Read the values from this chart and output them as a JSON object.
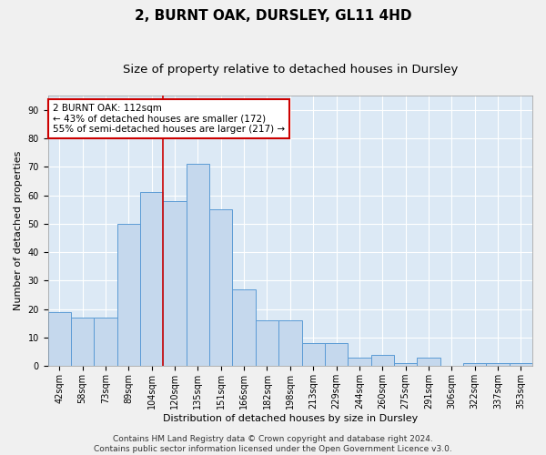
{
  "title1": "2, BURNT OAK, DURSLEY, GL11 4HD",
  "title2": "Size of property relative to detached houses in Dursley",
  "xlabel": "Distribution of detached houses by size in Dursley",
  "ylabel": "Number of detached properties",
  "categories": [
    "42sqm",
    "58sqm",
    "73sqm",
    "89sqm",
    "104sqm",
    "120sqm",
    "135sqm",
    "151sqm",
    "166sqm",
    "182sqm",
    "198sqm",
    "213sqm",
    "229sqm",
    "244sqm",
    "260sqm",
    "275sqm",
    "291sqm",
    "306sqm",
    "322sqm",
    "337sqm",
    "353sqm"
  ],
  "values": [
    19,
    17,
    17,
    50,
    61,
    58,
    71,
    55,
    27,
    16,
    16,
    8,
    8,
    3,
    4,
    1,
    3,
    0,
    1,
    1,
    1
  ],
  "bar_color": "#c5d8ed",
  "bar_edge_color": "#5b9bd5",
  "background_color": "#dce9f5",
  "grid_color": "#ffffff",
  "vline_index": 5,
  "vline_color": "#cc0000",
  "annotation_text": "2 BURNT OAK: 112sqm\n← 43% of detached houses are smaller (172)\n55% of semi-detached houses are larger (217) →",
  "annotation_box_color": "#ffffff",
  "annotation_edge_color": "#cc0000",
  "footer_text": "Contains HM Land Registry data © Crown copyright and database right 2024.\nContains public sector information licensed under the Open Government Licence v3.0.",
  "ylim": [
    0,
    95
  ],
  "yticks": [
    0,
    10,
    20,
    30,
    40,
    50,
    60,
    70,
    80,
    90
  ],
  "title1_fontsize": 11,
  "title2_fontsize": 9.5,
  "axis_label_fontsize": 8,
  "tick_fontsize": 7,
  "annotation_fontsize": 7.5,
  "footer_fontsize": 6.5,
  "fig_bg": "#f0f0f0"
}
